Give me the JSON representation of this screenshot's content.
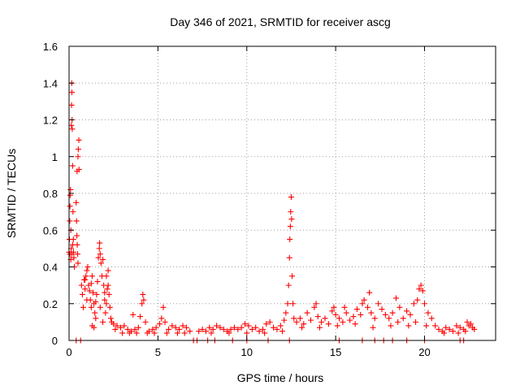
{
  "chart_data": {
    "type": "scatter",
    "title": "Day 346 of 2021, SRMTID for receiver ascg",
    "xlabel": "GPS time / hours",
    "ylabel": "SRMTID / TECUs",
    "xlim": [
      0,
      24
    ],
    "ylim": [
      0,
      1.6
    ],
    "x_ticks": [
      0,
      5,
      10,
      15,
      20
    ],
    "x_tick_labels": [
      "0",
      "5",
      "10",
      "15",
      "20"
    ],
    "y_ticks": [
      0,
      0.2,
      0.4,
      0.6,
      0.8,
      1.0,
      1.2,
      1.4,
      1.6
    ],
    "y_tick_labels": [
      "0",
      "0.2",
      "0.4",
      "0.6",
      "0.8",
      "1",
      "1.2",
      "1.4",
      "1.6"
    ],
    "grid": true,
    "marker": "plus",
    "series": [
      {
        "name": "SRMTID",
        "color": "#ff0000",
        "points": [
          [
            0.0,
            0.48
          ],
          [
            0.02,
            0.55
          ],
          [
            0.04,
            0.65
          ],
          [
            0.05,
            0.73
          ],
          [
            0.06,
            0.79
          ],
          [
            0.08,
            0.82
          ],
          [
            0.1,
            0.6
          ],
          [
            0.12,
            0.5
          ],
          [
            0.13,
            1.17
          ],
          [
            0.14,
            1.28
          ],
          [
            0.15,
            1.4
          ],
          [
            0.16,
            1.35
          ],
          [
            0.17,
            1.2
          ],
          [
            0.18,
            1.15
          ],
          [
            0.2,
            0.95
          ],
          [
            0.22,
            0.7
          ],
          [
            0.24,
            0.55
          ],
          [
            0.25,
            0.48
          ],
          [
            0.27,
            0.45
          ],
          [
            0.3,
            0.4
          ],
          [
            0.1,
            0.44
          ],
          [
            0.2,
            0.52
          ],
          [
            0.05,
            0.47
          ],
          [
            0.15,
            0.47
          ],
          [
            0.45,
            0.92
          ],
          [
            0.5,
            1.0
          ],
          [
            0.52,
            1.04
          ],
          [
            0.55,
            1.09
          ],
          [
            0.56,
            0.93
          ],
          [
            0.4,
            0.75
          ],
          [
            0.42,
            0.65
          ],
          [
            0.44,
            0.57
          ],
          [
            0.46,
            0.52
          ],
          [
            0.48,
            0.47
          ],
          [
            0.5,
            0.42
          ],
          [
            0.7,
            0.3
          ],
          [
            0.75,
            0.25
          ],
          [
            0.8,
            0.18
          ],
          [
            0.85,
            0.33
          ],
          [
            0.9,
            0.28
          ],
          [
            0.95,
            0.35
          ],
          [
            1.0,
            0.38
          ],
          [
            1.05,
            0.4
          ],
          [
            1.1,
            0.3
          ],
          [
            1.15,
            0.27
          ],
          [
            1.2,
            0.22
          ],
          [
            1.25,
            0.31
          ],
          [
            1.3,
            0.35
          ],
          [
            1.35,
            0.26
          ],
          [
            1.4,
            0.2
          ],
          [
            1.45,
            0.15
          ],
          [
            1.5,
            0.12
          ],
          [
            1.55,
            0.25
          ],
          [
            1.6,
            0.32
          ],
          [
            1.65,
            0.45
          ],
          [
            1.7,
            0.5
          ],
          [
            1.72,
            0.53
          ],
          [
            1.75,
            0.47
          ],
          [
            1.8,
            0.42
          ],
          [
            1.85,
            0.35
          ],
          [
            1.9,
            0.44
          ],
          [
            1.95,
            0.3
          ],
          [
            2.0,
            0.22
          ],
          [
            2.05,
            0.15
          ],
          [
            2.1,
            0.2
          ],
          [
            2.15,
            0.28
          ],
          [
            2.2,
            0.3
          ],
          [
            2.25,
            0.25
          ],
          [
            2.3,
            0.18
          ],
          [
            2.35,
            0.12
          ],
          [
            2.4,
            0.1
          ],
          [
            1.25,
            0.18
          ],
          [
            1.5,
            0.21
          ],
          [
            1.75,
            0.18
          ],
          [
            1.9,
            0.1
          ],
          [
            1.0,
            0.22
          ],
          [
            0.9,
            0.33
          ],
          [
            1.3,
            0.08
          ],
          [
            1.4,
            0.07
          ],
          [
            2.2,
            0.38
          ],
          [
            2.1,
            0.35
          ],
          [
            2.0,
            0.26
          ],
          [
            2.5,
            0.09
          ],
          [
            2.7,
            0.08
          ],
          [
            2.9,
            0.07
          ],
          [
            3.1,
            0.08
          ],
          [
            3.3,
            0.06
          ],
          [
            3.5,
            0.05
          ],
          [
            3.6,
            0.14
          ],
          [
            3.7,
            0.06
          ],
          [
            3.9,
            0.07
          ],
          [
            4.0,
            0.13
          ],
          [
            4.1,
            0.2
          ],
          [
            4.15,
            0.25
          ],
          [
            4.2,
            0.22
          ],
          [
            4.3,
            0.1
          ],
          [
            4.5,
            0.05
          ],
          [
            4.7,
            0.06
          ],
          [
            4.9,
            0.07
          ],
          [
            5.1,
            0.09
          ],
          [
            5.2,
            0.12
          ],
          [
            5.3,
            0.18
          ],
          [
            5.4,
            0.1
          ],
          [
            5.6,
            0.06
          ],
          [
            5.8,
            0.08
          ],
          [
            6.0,
            0.07
          ],
          [
            6.2,
            0.06
          ],
          [
            6.4,
            0.08
          ],
          [
            6.6,
            0.07
          ],
          [
            6.8,
            0.05
          ],
          [
            2.6,
            0.06
          ],
          [
            3.0,
            0.04
          ],
          [
            3.4,
            0.04
          ],
          [
            3.8,
            0.04
          ],
          [
            4.4,
            0.04
          ],
          [
            4.8,
            0.04
          ],
          [
            5.5,
            0.04
          ],
          [
            6.1,
            0.04
          ],
          [
            6.5,
            0.04
          ],
          [
            7.3,
            0.05
          ],
          [
            7.5,
            0.06
          ],
          [
            7.7,
            0.05
          ],
          [
            7.9,
            0.07
          ],
          [
            8.1,
            0.06
          ],
          [
            8.3,
            0.08
          ],
          [
            8.5,
            0.07
          ],
          [
            8.7,
            0.06
          ],
          [
            8.9,
            0.05
          ],
          [
            9.1,
            0.06
          ],
          [
            9.3,
            0.07
          ],
          [
            9.5,
            0.06
          ],
          [
            9.7,
            0.07
          ],
          [
            9.9,
            0.09
          ],
          [
            10.1,
            0.08
          ],
          [
            10.3,
            0.06
          ],
          [
            10.5,
            0.07
          ],
          [
            10.7,
            0.05
          ],
          [
            10.9,
            0.06
          ],
          [
            11.1,
            0.09
          ],
          [
            11.3,
            0.1
          ],
          [
            11.5,
            0.07
          ],
          [
            11.7,
            0.06
          ],
          [
            11.9,
            0.08
          ],
          [
            12.1,
            0.11
          ],
          [
            12.2,
            0.15
          ],
          [
            12.3,
            0.2
          ],
          [
            12.35,
            0.3
          ],
          [
            12.4,
            0.45
          ],
          [
            12.42,
            0.55
          ],
          [
            12.45,
            0.62
          ],
          [
            12.47,
            0.7
          ],
          [
            12.5,
            0.78
          ],
          [
            12.52,
            0.66
          ],
          [
            12.55,
            0.35
          ],
          [
            12.6,
            0.2
          ],
          [
            12.65,
            0.12
          ],
          [
            8.0,
            0.04
          ],
          [
            9.0,
            0.04
          ],
          [
            10.0,
            0.04
          ],
          [
            11.0,
            0.04
          ],
          [
            12.0,
            0.05
          ],
          [
            12.8,
            0.1
          ],
          [
            13.0,
            0.12
          ],
          [
            13.2,
            0.09
          ],
          [
            13.4,
            0.15
          ],
          [
            13.6,
            0.11
          ],
          [
            13.8,
            0.18
          ],
          [
            13.9,
            0.2
          ],
          [
            14.0,
            0.13
          ],
          [
            14.2,
            0.1
          ],
          [
            14.4,
            0.12
          ],
          [
            14.6,
            0.09
          ],
          [
            14.8,
            0.16
          ],
          [
            14.9,
            0.18
          ],
          [
            15.0,
            0.14
          ],
          [
            15.2,
            0.12
          ],
          [
            15.4,
            0.1
          ],
          [
            15.6,
            0.15
          ],
          [
            15.8,
            0.11
          ],
          [
            16.0,
            0.13
          ],
          [
            16.2,
            0.17
          ],
          [
            16.4,
            0.14
          ],
          [
            16.5,
            0.2
          ],
          [
            16.6,
            0.22
          ],
          [
            16.8,
            0.18
          ],
          [
            17.0,
            0.15
          ],
          [
            17.2,
            0.12
          ],
          [
            17.4,
            0.2
          ],
          [
            17.6,
            0.17
          ],
          [
            17.8,
            0.14
          ],
          [
            18.0,
            0.12
          ],
          [
            18.2,
            0.15
          ],
          [
            18.4,
            0.23
          ],
          [
            18.6,
            0.18
          ],
          [
            18.8,
            0.12
          ],
          [
            19.0,
            0.16
          ],
          [
            19.2,
            0.14
          ],
          [
            19.4,
            0.2
          ],
          [
            19.6,
            0.22
          ],
          [
            19.7,
            0.28
          ],
          [
            19.8,
            0.3
          ],
          [
            19.9,
            0.27
          ],
          [
            20.0,
            0.2
          ],
          [
            20.2,
            0.15
          ],
          [
            20.4,
            0.12
          ],
          [
            13.1,
            0.07
          ],
          [
            14.1,
            0.07
          ],
          [
            15.1,
            0.08
          ],
          [
            16.1,
            0.09
          ],
          [
            17.1,
            0.07
          ],
          [
            18.1,
            0.08
          ],
          [
            19.1,
            0.08
          ],
          [
            20.1,
            0.08
          ],
          [
            16.9,
            0.26
          ],
          [
            18.5,
            0.1
          ],
          [
            19.5,
            0.1
          ],
          [
            15.5,
            0.18
          ],
          [
            20.6,
            0.08
          ],
          [
            20.8,
            0.06
          ],
          [
            21.0,
            0.05
          ],
          [
            21.2,
            0.07
          ],
          [
            21.4,
            0.06
          ],
          [
            21.6,
            0.05
          ],
          [
            21.8,
            0.08
          ],
          [
            22.0,
            0.07
          ],
          [
            22.2,
            0.06
          ],
          [
            22.3,
            0.05
          ],
          [
            22.5,
            0.08
          ],
          [
            22.6,
            0.09
          ],
          [
            22.7,
            0.07
          ],
          [
            22.8,
            0.06
          ],
          [
            21.1,
            0.04
          ],
          [
            21.9,
            0.04
          ],
          [
            22.4,
            0.1
          ],
          [
            0.4,
            0.0
          ],
          [
            0.65,
            0.0
          ],
          [
            7.0,
            0.0
          ],
          [
            7.2,
            0.0
          ],
          [
            7.8,
            0.0
          ],
          [
            8.2,
            0.0
          ],
          [
            9.2,
            0.0
          ],
          [
            10.0,
            0.0
          ],
          [
            11.2,
            0.0
          ],
          [
            12.4,
            0.0
          ],
          [
            15.2,
            0.0
          ],
          [
            16.5,
            0.0
          ],
          [
            17.2,
            0.0
          ],
          [
            17.7,
            0.0
          ],
          [
            18.2,
            0.0
          ],
          [
            19.0,
            0.0
          ],
          [
            20.0,
            0.0
          ],
          [
            22.0,
            0.0
          ],
          [
            22.2,
            0.0
          ]
        ]
      }
    ]
  }
}
